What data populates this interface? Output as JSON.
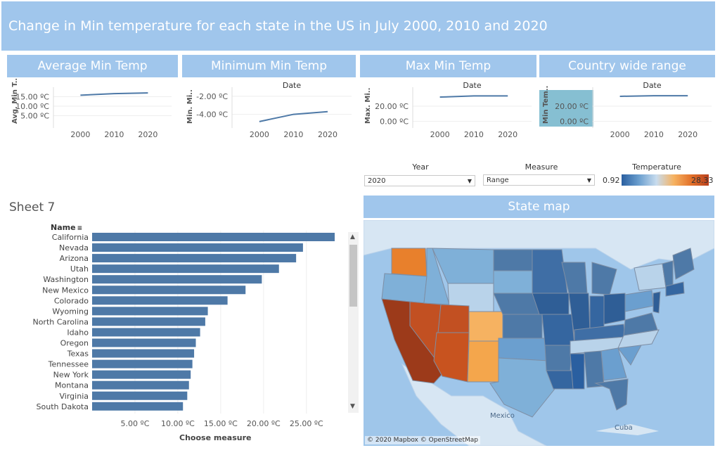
{
  "title": "Change in Min temperature for each state  in the US in July 2000, 2010 and 2020",
  "panels": [
    {
      "header": "Average Min Temp",
      "axis_title": "Avg. Min T..",
      "top_label": "",
      "y_ticks": [
        "15.00 ºC",
        "10.00 ºC",
        "5.00 ºC"
      ],
      "x_ticks": [
        "2000",
        "2010",
        "2020"
      ]
    },
    {
      "header": "Minimum Min Temp",
      "axis_title": "Min. Mi..",
      "top_label": "Date",
      "y_ticks": [
        "-2.00 ºC",
        "-4.00 ºC"
      ],
      "x_ticks": [
        "2000",
        "2010",
        "2020"
      ]
    },
    {
      "header": "Max Min Temp",
      "axis_title": "Max. Mi..",
      "top_label": "Date",
      "y_ticks": [
        "20.00 ºC",
        "0.00 ºC"
      ],
      "x_ticks": [
        "2000",
        "2010",
        "2020"
      ]
    },
    {
      "header": "Country wide range",
      "axis_title": "Min Tem..",
      "top_label": "Date",
      "y_ticks": [
        "20.00 ºC",
        "0.00 ºC"
      ],
      "x_ticks": [
        "2000",
        "2010",
        "2020"
      ]
    }
  ],
  "filters": {
    "year_label": "Year",
    "year_value": "2020",
    "measure_label": "Measure",
    "measure_value": "Range",
    "legend_label": "Temperature",
    "legend_min": "0.92",
    "legend_max": "28.33"
  },
  "sheet": {
    "title": "Sheet 7",
    "name_header": "Name",
    "x_axis_title": "Choose measure",
    "x_ticks": [
      "5.00 ºC",
      "10.00 ºC",
      "15.00 ºC",
      "20.00 ºC",
      "25.00 ºC"
    ]
  },
  "map": {
    "header": "State map",
    "copyright": "© 2020 Mapbox © OpenStreetMap",
    "label_mexico": "Mexico",
    "label_cuba": "Cuba"
  },
  "chart_data": [
    {
      "type": "line",
      "title": "",
      "xlabel": "",
      "ylabel": "Avg. Min T..",
      "x": [
        2000,
        2010,
        2020
      ],
      "values": [
        15.8,
        16.6,
        17.0
      ],
      "ylim": [
        0,
        20
      ]
    },
    {
      "type": "line",
      "title": "",
      "xlabel": "Date",
      "ylabel": "Min. Mi..",
      "x": [
        2000,
        2010,
        2020
      ],
      "values": [
        -4.8,
        -4.0,
        -3.7
      ],
      "ylim": [
        -5.2,
        -1
      ]
    },
    {
      "type": "line",
      "title": "",
      "xlabel": "Date",
      "ylabel": "Max. Mi..",
      "x": [
        2000,
        2010,
        2020
      ],
      "values": [
        32.0,
        33.5,
        33.5
      ],
      "ylim": [
        -5,
        45
      ]
    },
    {
      "type": "line",
      "title": "",
      "xlabel": "Date",
      "ylabel": "Min Tem..",
      "x": [
        2000,
        2010,
        2020
      ],
      "values": [
        33.0,
        33.8,
        33.8
      ],
      "ylim": [
        -5,
        45
      ]
    },
    {
      "type": "bar",
      "orientation": "horizontal",
      "title": "",
      "xlabel": "Choose measure",
      "ylabel": "Name",
      "categories": [
        "California",
        "Nevada",
        "Arizona",
        "Utah",
        "Washington",
        "New Mexico",
        "Colorado",
        "Wyoming",
        "North Carolina",
        "Idaho",
        "Oregon",
        "Texas",
        "Tennessee",
        "New York",
        "Montana",
        "Virginia",
        "South Dakota"
      ],
      "values": [
        28.3,
        24.6,
        23.8,
        21.8,
        19.8,
        17.9,
        15.8,
        13.5,
        13.2,
        12.6,
        12.1,
        11.9,
        11.7,
        11.5,
        11.3,
        11.1,
        10.6
      ],
      "xlim": [
        0,
        30
      ]
    }
  ],
  "colors": {
    "banner": "#a0c6ec",
    "bar": "#4e79a7",
    "line": "#4e79a7",
    "map_bg": "#9fc6ea",
    "temp_low": "#2a5fa0",
    "temp_high": "#b9401d"
  }
}
